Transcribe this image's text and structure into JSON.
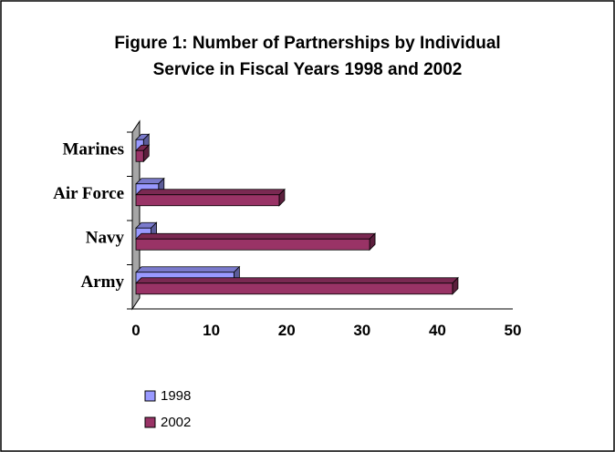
{
  "chart_data": {
    "type": "bar",
    "orientation": "horizontal",
    "title_lines": [
      "Figure 1: Number of Partnerships by Individual",
      "Service in Fiscal Years 1998 and 2002"
    ],
    "categories": [
      "Marines",
      "Air Force",
      "Navy",
      "Army"
    ],
    "series": [
      {
        "name": "1998",
        "values": [
          1,
          3,
          2,
          13
        ],
        "color": "#9999ff"
      },
      {
        "name": "2002",
        "values": [
          1,
          19,
          31,
          42
        ],
        "color": "#993366"
      }
    ],
    "xlim": [
      0,
      50
    ],
    "x_ticks": [
      "0",
      "10",
      "20",
      "30",
      "40",
      "50"
    ],
    "grid": false,
    "legend_placement": "bottom-left",
    "bar_style": "3d"
  }
}
